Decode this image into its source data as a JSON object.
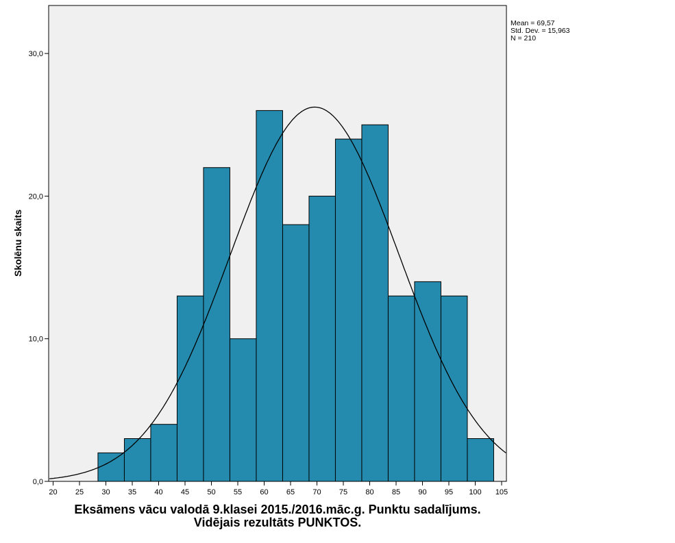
{
  "chart_data": {
    "type": "bar",
    "subtype": "histogram",
    "title": "",
    "xlabel": "Eksāmens vācu valodā 9.klasei 2015./2016.māc.g. Punktu sadalījums.",
    "xlabel2": "Vidējais rezultāts PUNKTOS.",
    "ylabel": "Skolēnu skaits",
    "xlim": [
      19.3,
      106
    ],
    "ylim": [
      0,
      33.4
    ],
    "x_ticks": [
      20,
      25,
      30,
      35,
      40,
      45,
      50,
      55,
      60,
      65,
      70,
      75,
      80,
      85,
      90,
      95,
      100,
      105
    ],
    "y_ticks": [
      0,
      10,
      20,
      30
    ],
    "y_tick_labels": [
      "0,0",
      "10,0",
      "20,0",
      "30,0"
    ],
    "bin_width": 5,
    "bins": [
      {
        "start": 28.5,
        "end": 33.5,
        "count": 2
      },
      {
        "start": 33.5,
        "end": 38.5,
        "count": 3
      },
      {
        "start": 38.5,
        "end": 43.5,
        "count": 4
      },
      {
        "start": 43.5,
        "end": 48.5,
        "count": 13
      },
      {
        "start": 48.5,
        "end": 53.5,
        "count": 22
      },
      {
        "start": 53.5,
        "end": 58.5,
        "count": 10
      },
      {
        "start": 58.5,
        "end": 63.5,
        "count": 26
      },
      {
        "start": 63.5,
        "end": 68.5,
        "count": 18
      },
      {
        "start": 68.5,
        "end": 73.5,
        "count": 20
      },
      {
        "start": 73.5,
        "end": 78.5,
        "count": 24
      },
      {
        "start": 78.5,
        "end": 83.5,
        "count": 25
      },
      {
        "start": 83.5,
        "end": 88.5,
        "count": 13
      },
      {
        "start": 88.5,
        "end": 93.5,
        "count": 14
      },
      {
        "start": 93.5,
        "end": 98.5,
        "count": 13
      },
      {
        "start": 98.5,
        "end": 103.5,
        "count": 3
      }
    ],
    "normal_curve": {
      "mean": 69.57,
      "sd": 15.963,
      "n": 210
    },
    "stats": [
      "Mean = 69,57",
      "Std. Dev. = 15,963",
      "N = 210"
    ],
    "grid": false,
    "legend": "top-right",
    "colors": {
      "bar": "#248BAE",
      "plot_bg": "#F0F0F0",
      "curve": "#000000"
    }
  }
}
